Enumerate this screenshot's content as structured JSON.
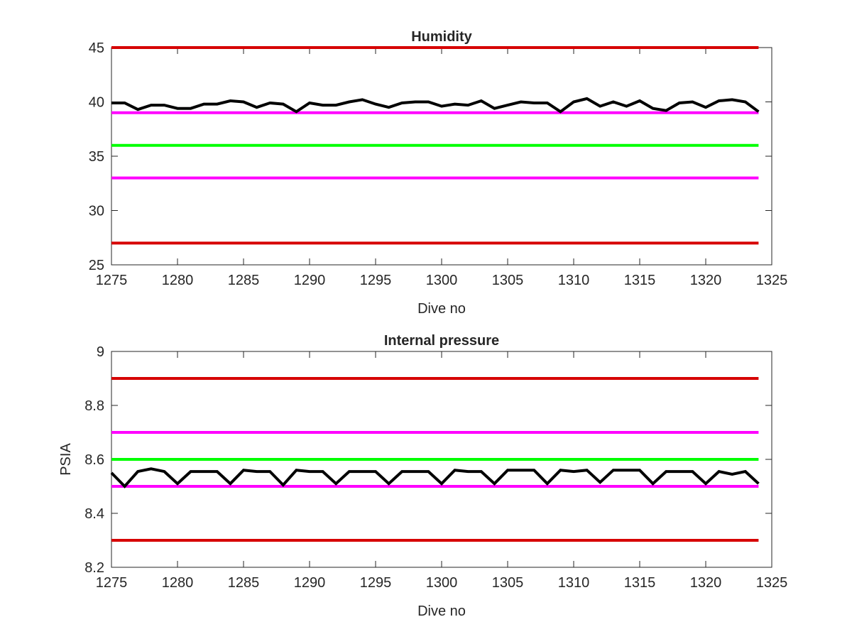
{
  "chart_data": [
    {
      "type": "line",
      "title": "Humidity",
      "xlabel": "Dive no",
      "ylabel": "",
      "xlim": [
        1275,
        1325
      ],
      "ylim": [
        25,
        45
      ],
      "xticks": [
        1275,
        1280,
        1285,
        1290,
        1295,
        1300,
        1305,
        1310,
        1315,
        1320,
        1325
      ],
      "yticks": [
        25,
        30,
        35,
        40,
        45
      ],
      "tick_labels_x": [
        "1275",
        "1280",
        "1285",
        "1290",
        "1295",
        "1300",
        "1305",
        "1310",
        "1315",
        "1320",
        "1325"
      ],
      "tick_labels_y": [
        "25",
        "30",
        "35",
        "40",
        "45"
      ],
      "grid": false,
      "reference_lines": [
        {
          "y": 45,
          "color": "#d60000",
          "x_range": [
            1275,
            1324
          ]
        },
        {
          "y": 39,
          "color": "#ff00ff",
          "x_range": [
            1275,
            1324
          ]
        },
        {
          "y": 36,
          "color": "#00ff00",
          "x_range": [
            1275,
            1324
          ]
        },
        {
          "y": 33,
          "color": "#ff00ff",
          "x_range": [
            1275,
            1324
          ]
        },
        {
          "y": 27,
          "color": "#d60000",
          "x_range": [
            1275,
            1324
          ]
        }
      ],
      "series": [
        {
          "color": "#000000",
          "x": [
            1275,
            1276,
            1277,
            1278,
            1279,
            1280,
            1281,
            1282,
            1283,
            1284,
            1285,
            1286,
            1287,
            1288,
            1289,
            1290,
            1291,
            1292,
            1293,
            1294,
            1295,
            1296,
            1297,
            1298,
            1299,
            1300,
            1301,
            1302,
            1303,
            1304,
            1305,
            1306,
            1307,
            1308,
            1309,
            1310,
            1311,
            1312,
            1313,
            1314,
            1315,
            1316,
            1317,
            1318,
            1319,
            1320,
            1321,
            1322,
            1323,
            1324
          ],
          "values": [
            39.9,
            39.9,
            39.3,
            39.7,
            39.7,
            39.4,
            39.4,
            39.8,
            39.8,
            40.1,
            40.0,
            39.5,
            39.9,
            39.8,
            39.1,
            39.9,
            39.7,
            39.7,
            40.0,
            40.2,
            39.8,
            39.5,
            39.9,
            40.0,
            40.0,
            39.6,
            39.8,
            39.7,
            40.1,
            39.4,
            39.7,
            40.0,
            39.9,
            39.9,
            39.1,
            40.0,
            40.3,
            39.6,
            40.0,
            39.6,
            40.1,
            39.4,
            39.2,
            39.9,
            40.0,
            39.5,
            40.1,
            40.2,
            40.0,
            39.1
          ]
        }
      ]
    },
    {
      "type": "line",
      "title": "Internal pressure",
      "xlabel": "Dive no",
      "ylabel": "PSIA",
      "xlim": [
        1275,
        1325
      ],
      "ylim": [
        8.2,
        9
      ],
      "xticks": [
        1275,
        1280,
        1285,
        1290,
        1295,
        1300,
        1305,
        1310,
        1315,
        1320,
        1325
      ],
      "yticks": [
        8.2,
        8.4,
        8.6,
        8.8,
        9
      ],
      "tick_labels_x": [
        "1275",
        "1280",
        "1285",
        "1290",
        "1295",
        "1300",
        "1305",
        "1310",
        "1315",
        "1320",
        "1325"
      ],
      "tick_labels_y": [
        "8.2",
        "8.4",
        "8.6",
        "8.8",
        "9"
      ],
      "grid": false,
      "reference_lines": [
        {
          "y": 8.9,
          "color": "#d60000",
          "x_range": [
            1275,
            1324
          ]
        },
        {
          "y": 8.7,
          "color": "#ff00ff",
          "x_range": [
            1275,
            1324
          ]
        },
        {
          "y": 8.6,
          "color": "#00ff00",
          "x_range": [
            1275,
            1324
          ]
        },
        {
          "y": 8.5,
          "color": "#ff00ff",
          "x_range": [
            1275,
            1324
          ]
        },
        {
          "y": 8.3,
          "color": "#d60000",
          "x_range": [
            1275,
            1324
          ]
        }
      ],
      "series": [
        {
          "color": "#000000",
          "x": [
            1275,
            1276,
            1277,
            1278,
            1279,
            1280,
            1281,
            1282,
            1283,
            1284,
            1285,
            1286,
            1287,
            1288,
            1289,
            1290,
            1291,
            1292,
            1293,
            1294,
            1295,
            1296,
            1297,
            1298,
            1299,
            1300,
            1301,
            1302,
            1303,
            1304,
            1305,
            1306,
            1307,
            1308,
            1309,
            1310,
            1311,
            1312,
            1313,
            1314,
            1315,
            1316,
            1317,
            1318,
            1319,
            1320,
            1321,
            1322,
            1323,
            1324
          ],
          "values": [
            8.55,
            8.5,
            8.555,
            8.565,
            8.555,
            8.51,
            8.555,
            8.555,
            8.555,
            8.51,
            8.56,
            8.555,
            8.555,
            8.505,
            8.56,
            8.555,
            8.555,
            8.51,
            8.555,
            8.555,
            8.555,
            8.51,
            8.555,
            8.555,
            8.555,
            8.51,
            8.56,
            8.555,
            8.555,
            8.51,
            8.56,
            8.56,
            8.56,
            8.51,
            8.56,
            8.555,
            8.56,
            8.515,
            8.56,
            8.56,
            8.56,
            8.51,
            8.555,
            8.555,
            8.555,
            8.51,
            8.555,
            8.545,
            8.555,
            8.51
          ]
        }
      ]
    }
  ]
}
